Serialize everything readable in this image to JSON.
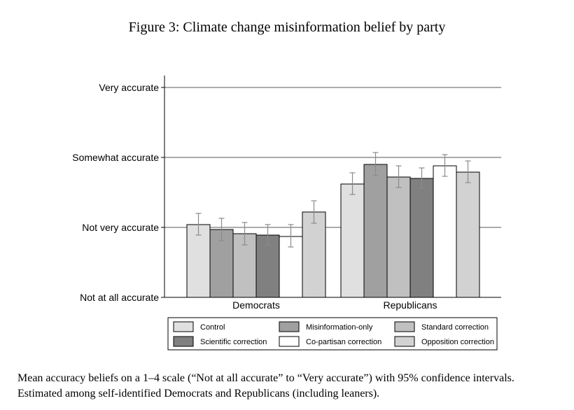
{
  "figure": {
    "title": "Figure 3: Climate change misinformation belief by party",
    "caption": [
      "Mean accuracy beliefs on a 1–4 scale (“Not at all accurate” to “Very accurate”) with 95% confidence intervals.",
      "Estimated among self-identified Democrats and Republicans (including leaners)."
    ]
  },
  "chart_data": {
    "type": "bar",
    "title": "",
    "xlabel": "",
    "ylabel": "",
    "ylim": [
      1,
      4
    ],
    "yticks": [
      {
        "value": 1,
        "label": "Not at all accurate"
      },
      {
        "value": 2,
        "label": "Not very accurate"
      },
      {
        "value": 3,
        "label": "Somewhat accurate"
      },
      {
        "value": 4,
        "label": "Very accurate"
      }
    ],
    "grid": true,
    "legend_position": "bottom",
    "categories": [
      "Democrats",
      "Republicans"
    ],
    "series": [
      {
        "name": "Control",
        "color": "#e0e0e0",
        "values": [
          2.04,
          2.62
        ],
        "ci_low": [
          1.89,
          2.47
        ],
        "ci_high": [
          2.2,
          2.78
        ]
      },
      {
        "name": "Misinformation-only",
        "color": "#a0a0a0",
        "values": [
          1.97,
          2.9
        ],
        "ci_low": [
          1.81,
          2.74
        ],
        "ci_high": [
          2.13,
          3.07
        ]
      },
      {
        "name": "Standard correction",
        "color": "#c0c0c0",
        "values": [
          1.91,
          2.72
        ],
        "ci_low": [
          1.75,
          2.57
        ],
        "ci_high": [
          2.07,
          2.88
        ]
      },
      {
        "name": "Scientific correction",
        "color": "#808080",
        "values": [
          1.89,
          2.7
        ],
        "ci_low": [
          1.75,
          2.56
        ],
        "ci_high": [
          2.04,
          2.85
        ]
      },
      {
        "name": "Co-partisan correction",
        "color": "#ffffff",
        "values": [
          1.87,
          2.88
        ],
        "ci_low": [
          1.72,
          2.73
        ],
        "ci_high": [
          2.04,
          3.04
        ]
      },
      {
        "name": "Opposition correction",
        "color": "#d2d2d2",
        "values": [
          2.22,
          2.79
        ],
        "ci_low": [
          2.06,
          2.64
        ],
        "ci_high": [
          2.38,
          2.95
        ]
      }
    ]
  }
}
